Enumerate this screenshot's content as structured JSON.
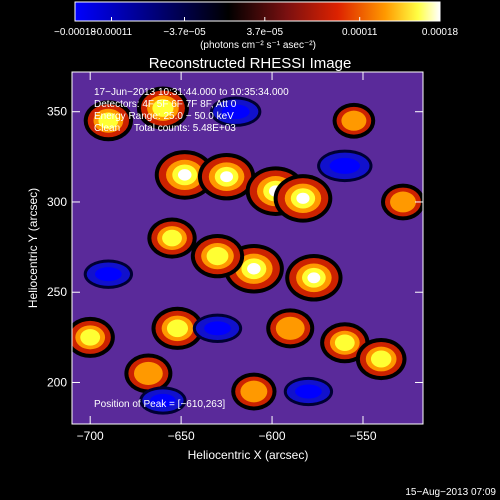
{
  "chart_data": {
    "type": "heatmap",
    "title": "Reconstructed RHESSI Image",
    "xlabel": "Heliocentric X (arcsec)",
    "ylabel": "Heliocentric Y (arcsec)",
    "xlim": [
      -710,
      -517
    ],
    "ylim": [
      177,
      372
    ],
    "x_ticks": [
      -700,
      -650,
      -600,
      -550
    ],
    "x_tick_labels": [
      "−700",
      "−650",
      "−600",
      "−550"
    ],
    "y_ticks": [
      200,
      250,
      300,
      350
    ],
    "y_tick_labels": [
      "200",
      "250",
      "300",
      "350"
    ],
    "colorbar": {
      "range": [
        -0.00018,
        0.00018
      ],
      "tick_labels": [
        "−0.00018",
        "−0.00011",
        "−3.7e−05",
        "3.7e−05",
        "0.00011",
        "0.00018"
      ],
      "units_label": "(photons cm⁻² s⁻¹ asec⁻²)"
    },
    "annotations": [
      "17−Jun−2013 10:31:44.000 to 10:35:34.000",
      "Detectors: 4F 5F 6F 7F 8F, Att 0",
      "Energy Range: 25.0 − 50.0 keV",
      "Clean     Total counts: 5.48E+03",
      "Position of Peak = [−610,263]"
    ],
    "peak": [
      -610,
      263
    ],
    "sources": [
      {
        "x": -648,
        "y": 315,
        "v": 0.00018
      },
      {
        "x": -625,
        "y": 314,
        "v": 0.00016
      },
      {
        "x": -598,
        "y": 306,
        "v": 0.00018
      },
      {
        "x": -583,
        "y": 302,
        "v": 0.00017
      },
      {
        "x": -610,
        "y": 263,
        "v": 0.00018
      },
      {
        "x": -630,
        "y": 270,
        "v": 0.00013
      },
      {
        "x": -577,
        "y": 258,
        "v": 0.00016
      },
      {
        "x": -655,
        "y": 280,
        "v": 0.0001
      },
      {
        "x": -690,
        "y": 345,
        "v": 0.0001
      },
      {
        "x": -660,
        "y": 352,
        "v": 0.00012
      },
      {
        "x": -590,
        "y": 230,
        "v": 9e-05
      },
      {
        "x": -560,
        "y": 222,
        "v": 0.0001
      },
      {
        "x": -540,
        "y": 213,
        "v": 0.00011
      },
      {
        "x": -652,
        "y": 230,
        "v": 0.00012
      },
      {
        "x": -668,
        "y": 205,
        "v": 9e-05
      },
      {
        "x": -700,
        "y": 225,
        "v": 0.0001
      },
      {
        "x": -610,
        "y": 195,
        "v": 7e-05
      },
      {
        "x": -528,
        "y": 300,
        "v": 6e-05
      },
      {
        "x": -555,
        "y": 345,
        "v": 5e-05
      },
      {
        "x": -620,
        "y": 350,
        "v": -7e-05
      },
      {
        "x": -560,
        "y": 320,
        "v": -9e-05
      },
      {
        "x": -690,
        "y": 260,
        "v": -6e-05
      },
      {
        "x": -630,
        "y": 230,
        "v": -6e-05
      },
      {
        "x": -660,
        "y": 190,
        "v": -5e-05
      },
      {
        "x": -580,
        "y": 195,
        "v": -6e-05
      }
    ]
  },
  "footer": {
    "timestamp": "15−Aug−2013 07:09"
  },
  "colors": {
    "background": "#000000",
    "frame": "#ffffff",
    "colormap": [
      "#0000ff",
      "#000044",
      "#000000",
      "#6633aa",
      "#000000",
      "#cc2200",
      "#ff9900",
      "#ffff00",
      "#ffffff"
    ]
  }
}
